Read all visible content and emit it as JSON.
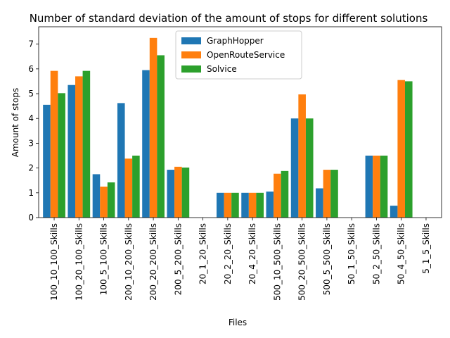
{
  "chart_data": {
    "type": "bar",
    "title": "Number of standard deviation of the amount of stops for different solutions",
    "xlabel": "Files",
    "ylabel": "Amount of stops",
    "ylim": [
      0,
      7.7
    ],
    "yticks": [
      0,
      1,
      2,
      3,
      4,
      5,
      6,
      7
    ],
    "grid": false,
    "legend_position": "top-center",
    "categories": [
      "100_10_100_Skills",
      "100_20_100_Skills",
      "100_5_100_Skills",
      "200_10_200_Skills",
      "200_20_200_Skills",
      "200_5_200_Skills",
      "20_1_20_Skills",
      "20_2_20_Skills",
      "20_4_20_Skills",
      "500_10_500_Skills",
      "500_20_500_Skills",
      "500_5_500_Skills",
      "50_1_50_Skills",
      "50_2_50_Skills",
      "50_4_50_Skills",
      "5_1_5_Skills"
    ],
    "series": [
      {
        "name": "GraphHopper",
        "color": "#1f77b4",
        "values": [
          4.55,
          5.35,
          1.75,
          4.62,
          5.95,
          1.93,
          0,
          1.0,
          1.0,
          1.05,
          4.0,
          1.18,
          0,
          2.5,
          0.48,
          0
        ]
      },
      {
        "name": "OpenRouteService",
        "color": "#ff7f0e",
        "values": [
          5.92,
          5.7,
          1.25,
          2.38,
          7.25,
          2.05,
          0,
          1.0,
          1.0,
          1.77,
          4.97,
          1.93,
          0,
          2.5,
          5.55,
          0
        ]
      },
      {
        "name": "Solvice",
        "color": "#2ca02c",
        "values": [
          5.02,
          5.92,
          1.42,
          2.5,
          6.55,
          2.02,
          0,
          1.0,
          1.0,
          1.88,
          4.0,
          1.93,
          0,
          2.5,
          5.5,
          0
        ]
      }
    ]
  }
}
